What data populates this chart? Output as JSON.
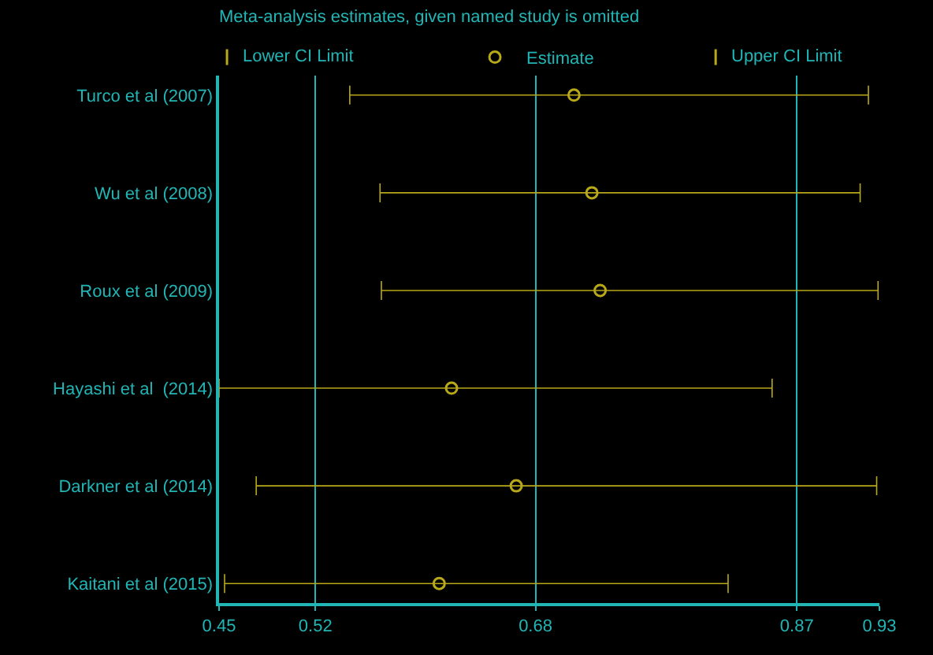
{
  "chart_data": {
    "type": "scatter",
    "title": "Meta-analysis estimates, given named study is omitted",
    "categories": [
      "Turco et al (2007)",
      "Wu et al (2008)",
      "Roux et al (2009)",
      "Hayashi et al  (2014)",
      "Darkner et al (2014)",
      "Kaitani et al (2015)"
    ],
    "orientation": "horizontal",
    "series": [
      {
        "name": "Estimate",
        "color": "#b8a81a",
        "marker": "circle",
        "values": [
          0.708,
          0.721,
          0.727,
          0.619,
          0.666,
          0.61
        ],
        "errors": [
          [
            0.545,
            0.922
          ],
          [
            0.567,
            0.916
          ],
          [
            0.568,
            0.929
          ],
          [
            0.45,
            0.852
          ],
          [
            0.477,
            0.928
          ],
          [
            0.454,
            0.82
          ]
        ]
      }
    ],
    "annotations": [
      "Lower CI Limit",
      "Upper CI Limit"
    ],
    "xlim": [
      0.45,
      0.93
    ],
    "xticks": [
      0.45,
      0.52,
      0.68,
      0.87,
      0.93
    ],
    "grid": "x",
    "legend": "top"
  }
}
